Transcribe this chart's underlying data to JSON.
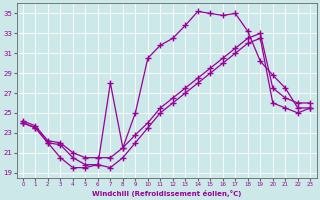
{
  "xlabel": "Windchill (Refroidissement éolien,°C)",
  "bg_color": "#cce8e8",
  "line_color": "#990099",
  "marker": "+",
  "xlim": [
    -0.5,
    23.5
  ],
  "ylim": [
    18.5,
    36
  ],
  "xticks": [
    0,
    1,
    2,
    3,
    4,
    5,
    6,
    7,
    8,
    9,
    10,
    11,
    12,
    13,
    14,
    15,
    16,
    17,
    18,
    19,
    20,
    21,
    22,
    23
  ],
  "yticks": [
    19,
    21,
    23,
    25,
    27,
    29,
    31,
    33,
    35
  ],
  "line1_x": [
    0,
    1,
    2,
    3,
    4,
    5,
    6,
    7,
    8,
    9,
    10,
    11,
    12,
    13,
    14,
    15,
    16,
    17,
    18,
    19,
    20,
    21,
    22,
    23
  ],
  "line1_y": [
    24.0,
    23.5,
    22.0,
    20.5,
    19.5,
    19.5,
    19.8,
    19.5,
    20.5,
    22.0,
    23.5,
    25.0,
    26.0,
    27.0,
    28.0,
    29.0,
    30.0,
    31.0,
    32.0,
    32.5,
    26.0,
    25.5,
    25.0,
    25.5
  ],
  "line2_x": [
    0,
    1,
    2,
    3,
    4,
    5,
    6,
    7,
    8,
    9,
    10,
    11,
    12,
    13,
    14,
    15,
    16,
    17,
    18,
    19,
    20,
    21,
    22,
    23
  ],
  "line2_y": [
    24.0,
    23.5,
    22.0,
    21.8,
    20.5,
    19.8,
    19.8,
    28.0,
    21.5,
    25.0,
    30.5,
    31.8,
    32.5,
    33.8,
    35.2,
    35.0,
    34.8,
    35.0,
    33.2,
    30.2,
    28.8,
    27.5,
    25.5,
    25.5
  ],
  "line3_x": [
    0,
    1,
    2,
    3,
    4,
    5,
    6,
    7,
    8,
    9,
    10,
    11,
    12,
    13,
    14,
    15,
    16,
    17,
    18,
    19,
    20,
    21,
    22,
    23
  ],
  "line3_y": [
    24.2,
    23.7,
    22.2,
    22.0,
    21.0,
    20.5,
    20.5,
    20.5,
    21.5,
    22.8,
    24.0,
    25.5,
    26.5,
    27.5,
    28.5,
    29.5,
    30.5,
    31.5,
    32.5,
    33.0,
    27.5,
    26.5,
    26.0,
    26.0
  ]
}
